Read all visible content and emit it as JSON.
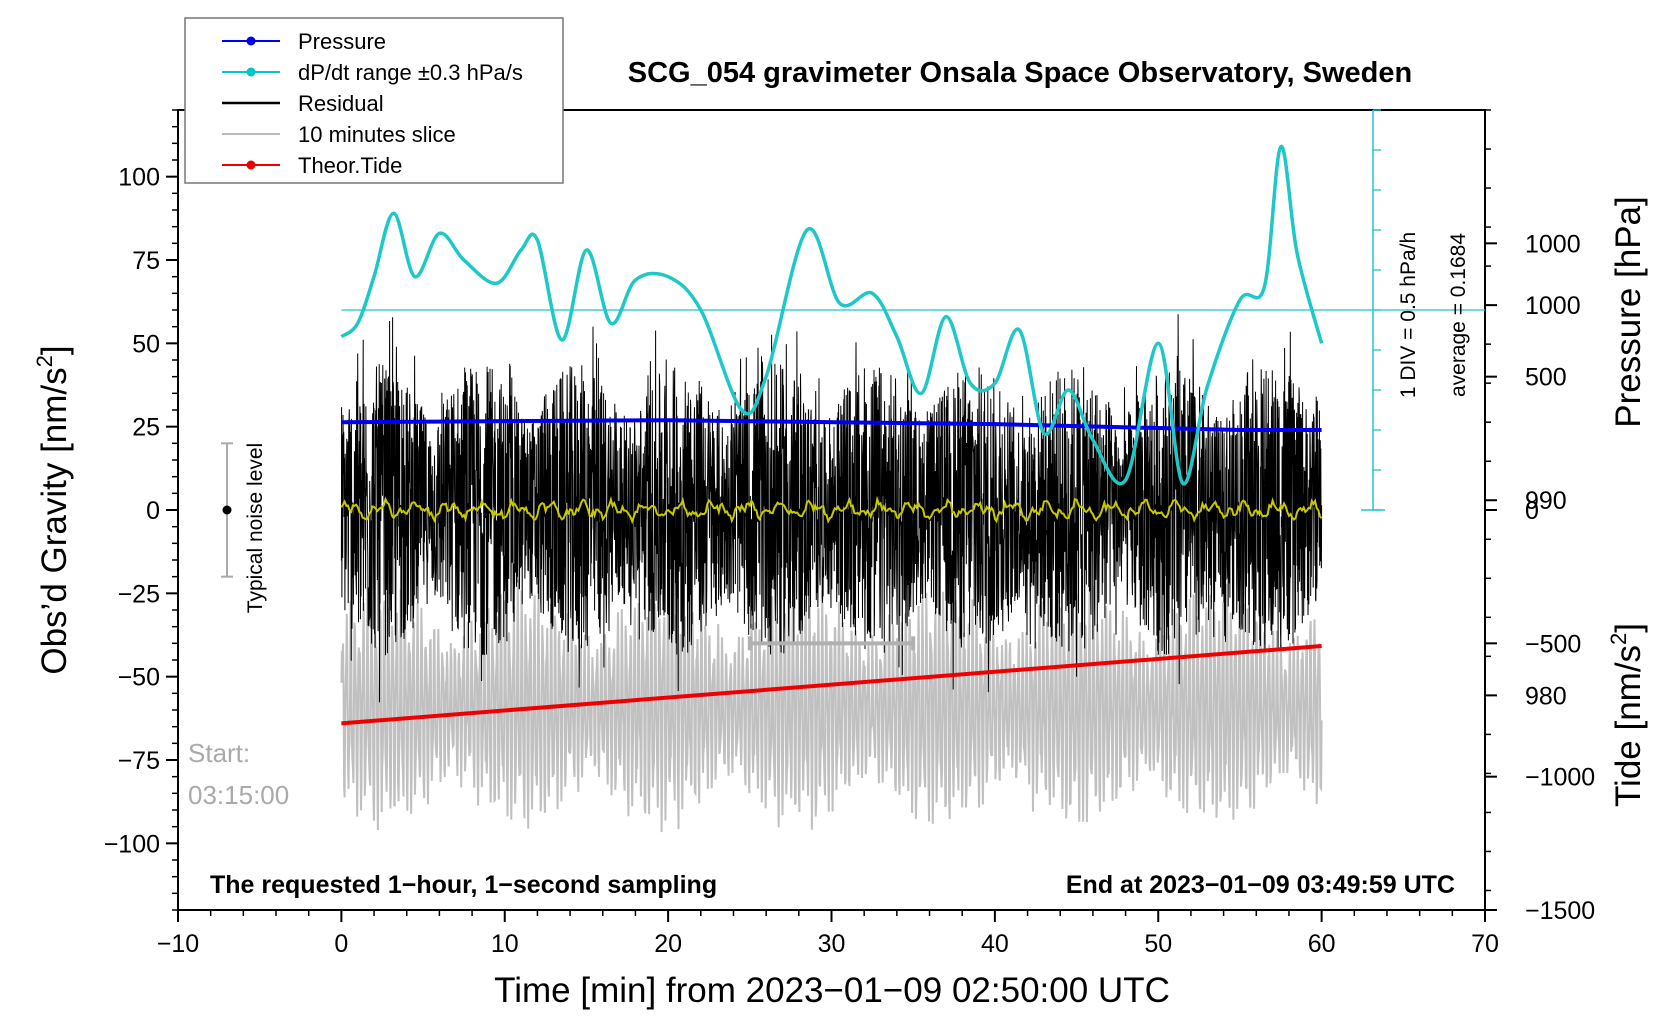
{
  "chart_data": {
    "type": "line",
    "title": "SCG_054 gravimeter Onsala Space Observatory, Sweden",
    "xlabel": "Time [min] from 2023−01−09 02:50:00 UTC",
    "ylabel_left": "Obs’d Gravity [nm/s",
    "ylabel_left_sup": "2",
    "ylabel_left_end": "]",
    "ylabel_pressure": "Pressure [hPa]",
    "ylabel_tide": "Tide [nm/s",
    "ylabel_tide_sup": "2",
    "ylabel_tide_end": "]",
    "xlim": [
      -10,
      70
    ],
    "ylim_gravity": [
      -120,
      120
    ],
    "ylim_pressure": [
      969,
      1010
    ],
    "ylim_tide": [
      -1500,
      1500
    ],
    "x_ticks": [
      {
        "v": -10,
        "label": "−10"
      },
      {
        "v": 0,
        "label": "0"
      },
      {
        "v": 10,
        "label": "10"
      },
      {
        "v": 20,
        "label": "20"
      },
      {
        "v": 30,
        "label": "30"
      },
      {
        "v": 40,
        "label": "40"
      },
      {
        "v": 50,
        "label": "50"
      },
      {
        "v": 60,
        "label": "60"
      },
      {
        "v": 70,
        "label": "70"
      }
    ],
    "gravity_ticks": [
      {
        "v": 100,
        "label": "100"
      },
      {
        "v": 75,
        "label": "75"
      },
      {
        "v": 50,
        "label": "50"
      },
      {
        "v": 25,
        "label": "25"
      },
      {
        "v": 0,
        "label": "0"
      },
      {
        "v": -25,
        "label": "−25"
      },
      {
        "v": -50,
        "label": "−50"
      },
      {
        "v": -75,
        "label": "−75"
      },
      {
        "v": -100,
        "label": "−100"
      }
    ],
    "pressure_ticks": [
      {
        "v": 1000,
        "label": "1000"
      },
      {
        "v": 990,
        "label": "990"
      },
      {
        "v": 980,
        "label": "980"
      }
    ],
    "tide_ticks": [
      {
        "v": 1000,
        "label": "1000"
      },
      {
        "v": 500,
        "label": "500"
      },
      {
        "v": 0,
        "label": "0"
      },
      {
        "v": -500,
        "label": "−500"
      },
      {
        "v": -1000,
        "label": "−1000"
      },
      {
        "v": -1500,
        "label": "−1500"
      }
    ],
    "legend": [
      {
        "label": "Pressure",
        "color": "#0000ee",
        "marker": true
      },
      {
        "label": "dP/dt range ±0.3 hPa/s",
        "color": "#00c8c8",
        "marker": true
      },
      {
        "label": "Residual",
        "color": "#000000",
        "marker": false
      },
      {
        "label": "10 minutes slice",
        "color": "#bbbbbb",
        "marker": false
      },
      {
        "label": "Theor.Tide",
        "color": "#ee0000",
        "marker": true
      }
    ],
    "colors": {
      "pressure": "#0000ee",
      "dpdt": "#1ec8c8",
      "residual": "#000000",
      "slice": "#c0c0c0",
      "tide": "#ee0000",
      "smoothed": "#c8c800"
    },
    "series": {
      "pressure": {
        "x": [
          0,
          20,
          40,
          55,
          60
        ],
        "hpa": [
          994.0,
          994.1,
          993.9,
          993.6,
          993.6
        ]
      },
      "dpdt": {
        "x": [
          0,
          1,
          2,
          3.2,
          4.5,
          6,
          7.5,
          9.5,
          11,
          12,
          13.5,
          15,
          16.5,
          18,
          20,
          22,
          24.5,
          26,
          28.5,
          30.5,
          32.5,
          34,
          35.5,
          37,
          38.5,
          40,
          41.5,
          43,
          44.5,
          46,
          48,
          50,
          51.5,
          53,
          55,
          56.5,
          57.5,
          58.5,
          60
        ],
        "y": [
          52,
          56,
          70,
          89,
          70,
          83,
          75,
          68,
          78,
          81,
          51,
          78,
          56,
          69,
          70,
          60,
          30,
          40,
          84,
          62,
          65,
          52,
          35,
          58,
          38,
          38,
          54,
          23,
          36,
          21,
          9,
          50,
          8,
          37,
          63,
          67,
          109,
          77,
          50
        ]
      },
      "tide": {
        "x": [
          0,
          60
        ],
        "y": [
          -800,
          -510
        ]
      },
      "residual_amplitude": 44,
      "smoothed_amplitude": 1.5,
      "slice_amplitude": 460,
      "slice_center": -740
    },
    "dpdt_axis": {
      "reference_y": 60,
      "bottom_y": 0,
      "top_y": 120,
      "label": "1 DIV = 0.5 hPa/h",
      "average": "average = 0.1684"
    },
    "noise_level": {
      "label": "Typical noise level",
      "x": -7,
      "center": 0,
      "half_range": 20
    },
    "slice_bar": {
      "x_start": 25,
      "x_end": 35,
      "y": -40
    },
    "start_label": "Start:",
    "start_time": "03:15:00",
    "footer_left": "The requested 1−hour, 1−second sampling",
    "footer_right": "End at 2023−01−09 03:49:59 UTC"
  }
}
